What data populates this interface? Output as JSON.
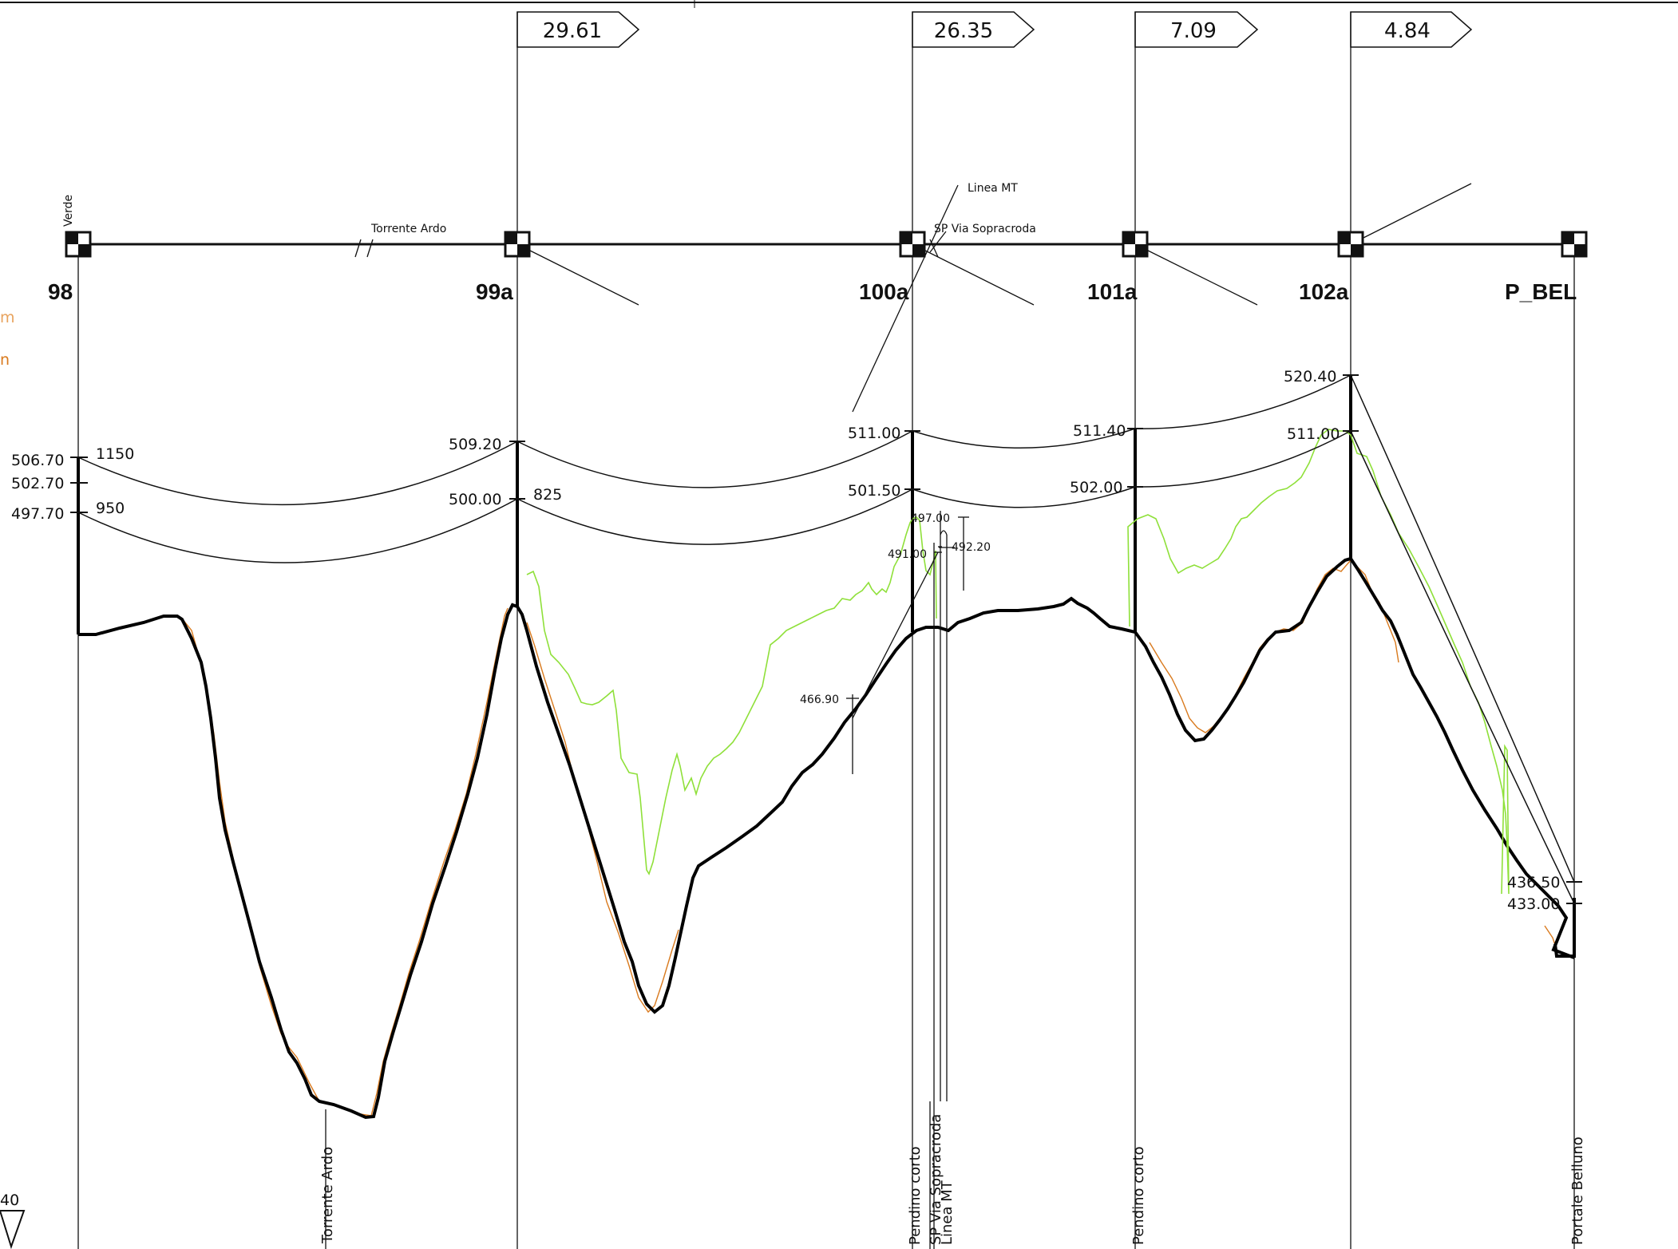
{
  "colors": {
    "ground": "#000000",
    "survey": "#d97a1e",
    "clearance": "#8fe03a",
    "cable": "#111111"
  },
  "spans": [
    {
      "id": "span-99a",
      "label": "29.61"
    },
    {
      "id": "span-100a",
      "label": "26.35"
    },
    {
      "id": "span-101a",
      "label": "7.09"
    },
    {
      "id": "span-102a",
      "label": "4.84"
    }
  ],
  "poles": [
    {
      "id": "98",
      "label": "98"
    },
    {
      "id": "99a",
      "label": "99a"
    },
    {
      "id": "100a",
      "label": "100a"
    },
    {
      "id": "101a",
      "label": "101a"
    },
    {
      "id": "102a",
      "label": "102a"
    },
    {
      "id": "p-bel",
      "label": "P_BEL"
    }
  ],
  "crossings": {
    "verde": "Verde",
    "torrente_top": "Torrente Ardo",
    "linea_mt_top": "Linea MT",
    "sp_top": "SP Via Sopracroda"
  },
  "elevations": {
    "p98_top": "506.70",
    "p98_mid": "502.70",
    "p98_low": "497.70",
    "p98_w1": "1150",
    "p98_w2": "950",
    "p99_top": "509.20",
    "p99_low": "500.00",
    "p99_w": "825",
    "p100_top": "511.00",
    "p100_low": "501.50",
    "p100_a": "497.00",
    "p100_b": "491.00",
    "p100_c": "492.20",
    "p100_mt": "466.90",
    "p101_top": "511.40",
    "p101_low": "502.00",
    "p102_top": "520.40",
    "p102_low": "511.00",
    "pbel_top": "436.50",
    "pbel_low": "433.00"
  },
  "bottom_labels": {
    "torrente": "Torrente Ardo",
    "pendino1": "Pendino corto",
    "sp": "SP Via Sopracroda",
    "linea_mt": "Linea MT",
    "pendino2": "Pendino corto",
    "portale": "Portale Belluno"
  },
  "left_edge": {
    "frag1": "m",
    "frag2": "n",
    "frag3": "40"
  }
}
